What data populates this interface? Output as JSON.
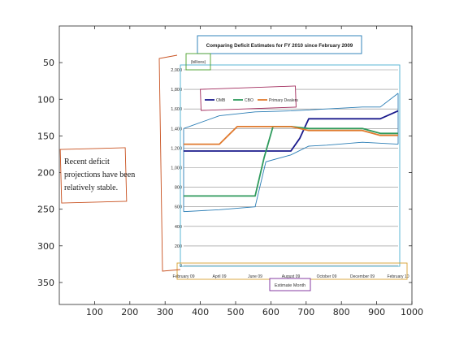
{
  "figure": {
    "outer_axes": {
      "xlim": [
        0,
        1000
      ],
      "ylim": [
        0,
        380
      ],
      "y_reversed": true,
      "xticks": [
        100,
        200,
        300,
        400,
        500,
        600,
        700,
        800,
        900,
        1000
      ],
      "yticks": [
        50,
        100,
        150,
        200,
        250,
        300,
        350
      ]
    }
  },
  "chart_data": {
    "type": "line",
    "title": "Comparing Deficit Estimates for FY 2010 since February 2009",
    "ylabel": "(billions)",
    "xlabel": "Estimate Month",
    "categories": [
      "February 09",
      "April 09",
      "June 09",
      "August 09",
      "October 09",
      "December 09",
      "February 10"
    ],
    "x_range": [
      0,
      12
    ],
    "ylim": [
      0,
      2000
    ],
    "yticks": [
      "0",
      "200",
      "400",
      "600",
      "800",
      "1,000",
      "1,200",
      "1,400",
      "1,600",
      "1,800",
      "2,000"
    ],
    "grid": true,
    "legend_position": "top-left",
    "series": [
      {
        "name": "OMB",
        "color": "#1a1a8c",
        "points": [
          [
            0,
            1170
          ],
          [
            1,
            1170
          ],
          [
            2,
            1170
          ],
          [
            3,
            1170
          ],
          [
            4,
            1170
          ],
          [
            5,
            1170
          ],
          [
            6,
            1170
          ],
          [
            6.5,
            1300
          ],
          [
            7,
            1500
          ],
          [
            8,
            1500
          ],
          [
            9,
            1500
          ],
          [
            10,
            1500
          ],
          [
            11,
            1500
          ],
          [
            12,
            1580
          ]
        ]
      },
      {
        "name": "CBO",
        "color": "#2e9a5c",
        "points": [
          [
            0,
            710
          ],
          [
            1,
            710
          ],
          [
            2,
            710
          ],
          [
            3,
            710
          ],
          [
            4,
            710
          ],
          [
            4.5,
            1100
          ],
          [
            5,
            1420
          ],
          [
            6,
            1420
          ],
          [
            7,
            1400
          ],
          [
            8,
            1400
          ],
          [
            9,
            1400
          ],
          [
            10,
            1400
          ],
          [
            11,
            1350
          ],
          [
            12,
            1350
          ]
        ]
      },
      {
        "name": "Primary Dealers",
        "color": "#e07a2e",
        "points": [
          [
            0,
            1240
          ],
          [
            1,
            1240
          ],
          [
            2,
            1240
          ],
          [
            2.5,
            1330
          ],
          [
            3,
            1420
          ],
          [
            4,
            1420
          ],
          [
            5,
            1420
          ],
          [
            6,
            1420
          ],
          [
            7,
            1380
          ],
          [
            8,
            1380
          ],
          [
            9,
            1380
          ],
          [
            10,
            1380
          ],
          [
            11,
            1330
          ],
          [
            12,
            1330
          ]
        ]
      }
    ],
    "annotations": [
      {
        "text": "Recent deficit projections have been relatively stable."
      }
    ]
  },
  "overlay_lines": {
    "color": "#2a7db5",
    "note_free": true,
    "upper": [
      [
        0,
        1400
      ],
      [
        2,
        1530
      ],
      [
        4,
        1570
      ],
      [
        6,
        1580
      ],
      [
        8,
        1600
      ],
      [
        10,
        1620
      ],
      [
        11,
        1620
      ],
      [
        12,
        1760
      ]
    ],
    "lower": [
      [
        0,
        550
      ],
      [
        2,
        570
      ],
      [
        4,
        600
      ],
      [
        4.6,
        1060
      ],
      [
        6,
        1130
      ],
      [
        7,
        1220
      ],
      [
        8,
        1230
      ],
      [
        10,
        1260
      ],
      [
        12,
        1240
      ]
    ]
  },
  "colors": {
    "title_box": "#1e78b4",
    "ylabel_box": "#4aa12a",
    "legend_box": "#a0285a",
    "annotation_box": "#c8501e",
    "xlabel_box": "#7a2a9a",
    "axis_frame_box": "#d8a030",
    "plot_frame": "#4ab0d0",
    "left_bracket": "#c8501e"
  }
}
